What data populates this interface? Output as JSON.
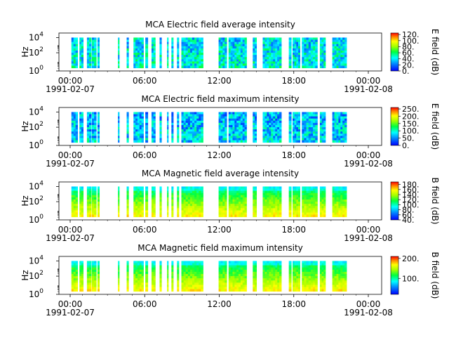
{
  "chart_data": [
    {
      "type": "heatmap",
      "title": "MCA  Electric field average intensity",
      "ylabel": "Hz",
      "y_scale": "log",
      "y_ticks": [
        {
          "base": "10",
          "exp": "0"
        },
        {
          "base": "10",
          "exp": "2"
        },
        {
          "base": "10",
          "exp": "4"
        }
      ],
      "x_ticks": [
        {
          "time": "00:00",
          "date": "1991-02-07"
        },
        {
          "time": "06:00",
          "date": ""
        },
        {
          "time": "12:00",
          "date": ""
        },
        {
          "time": "18:00",
          "date": ""
        },
        {
          "time": "00:00",
          "date": "1991-02-08"
        }
      ],
      "colorbar": {
        "label": "E field (dB)",
        "ticks": [
          "120.",
          "100.",
          "80.",
          "60.",
          "40.",
          "20.",
          "0."
        ],
        "range": [
          0,
          125
        ]
      },
      "base_level": 45
    },
    {
      "type": "heatmap",
      "title": "MCA  Electric field maximum intensity",
      "ylabel": "Hz",
      "y_scale": "log",
      "y_ticks": [
        {
          "base": "10",
          "exp": "0"
        },
        {
          "base": "10",
          "exp": "2"
        },
        {
          "base": "10",
          "exp": "4"
        }
      ],
      "x_ticks": [
        {
          "time": "00:00",
          "date": "1991-02-07"
        },
        {
          "time": "06:00",
          "date": ""
        },
        {
          "time": "12:00",
          "date": ""
        },
        {
          "time": "18:00",
          "date": ""
        },
        {
          "time": "00:00",
          "date": "1991-02-08"
        }
      ],
      "colorbar": {
        "label": "E field (dB)",
        "ticks": [
          "250.",
          "200.",
          "150.",
          "100.",
          "50.",
          "0."
        ],
        "range": [
          0,
          260
        ]
      },
      "base_level": 95
    },
    {
      "type": "heatmap",
      "title": "MCA  Magnetic field average intensity",
      "ylabel": "Hz",
      "y_scale": "log",
      "y_ticks": [
        {
          "base": "10",
          "exp": "0"
        },
        {
          "base": "10",
          "exp": "2"
        },
        {
          "base": "10",
          "exp": "4"
        }
      ],
      "x_ticks": [
        {
          "time": "00:00",
          "date": "1991-02-07"
        },
        {
          "time": "06:00",
          "date": ""
        },
        {
          "time": "12:00",
          "date": ""
        },
        {
          "time": "18:00",
          "date": ""
        },
        {
          "time": "00:00",
          "date": "1991-02-08"
        }
      ],
      "colorbar": {
        "label": "B field (dB)",
        "ticks": [
          "180.",
          "160.",
          "140.",
          "120.",
          "100.",
          "80.",
          "60.",
          "40."
        ],
        "range": [
          40,
          190
        ]
      },
      "base_level": 110
    },
    {
      "type": "heatmap",
      "title": "MCA  Magnetic field maximum intensity",
      "ylabel": "Hz",
      "y_scale": "log",
      "y_ticks": [
        {
          "base": "10",
          "exp": "0"
        },
        {
          "base": "10",
          "exp": "2"
        },
        {
          "base": "10",
          "exp": "4"
        }
      ],
      "x_ticks": [
        {
          "time": "00:00",
          "date": "1991-02-07"
        },
        {
          "time": "06:00",
          "date": ""
        },
        {
          "time": "12:00",
          "date": ""
        },
        {
          "time": "18:00",
          "date": ""
        },
        {
          "time": "00:00",
          "date": "1991-02-08"
        }
      ],
      "colorbar": {
        "label": "B field (dB)",
        "ticks": [
          "200.",
          "100."
        ],
        "range": [
          20,
          210
        ]
      },
      "base_level": 115
    }
  ],
  "data_intervals_hours": [
    [
      0.1,
      0.6
    ],
    [
      0.75,
      1.05
    ],
    [
      1.35,
      1.7
    ],
    [
      1.75,
      2.1
    ],
    [
      2.2,
      2.35
    ],
    [
      3.85,
      3.95
    ],
    [
      4.55,
      4.7
    ],
    [
      5.1,
      5.9
    ],
    [
      6.05,
      6.25
    ],
    [
      6.55,
      6.85
    ],
    [
      7.2,
      7.35
    ],
    [
      7.8,
      7.9
    ],
    [
      8.15,
      8.3
    ],
    [
      8.6,
      8.75
    ],
    [
      8.95,
      10.7
    ],
    [
      11.95,
      12.6
    ],
    [
      12.75,
      14.2
    ],
    [
      14.7,
      15.0
    ],
    [
      15.5,
      17.0
    ],
    [
      17.6,
      17.8
    ],
    [
      17.9,
      18.5
    ],
    [
      18.65,
      19.9
    ],
    [
      20.1,
      20.55
    ],
    [
      21.1,
      22.25
    ]
  ]
}
